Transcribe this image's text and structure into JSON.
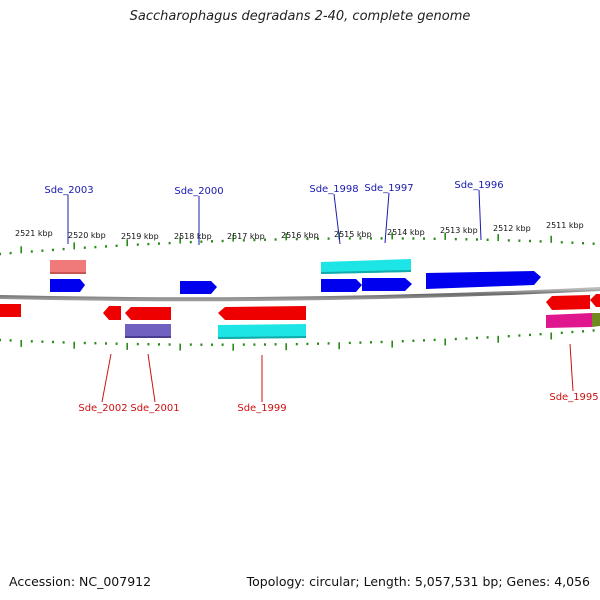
{
  "title": "Saccharophagus degradans 2-40, complete genome",
  "footer": {
    "accession": "Accession: NC_007912",
    "summary": "Topology: circular; Length: 5,057,531 bp; Genes: 4,056"
  },
  "colors": {
    "forward_gene": "#0000ee",
    "reverse_gene": "#ee0000",
    "forward_label": "#1a1ab0",
    "reverse_label": "#cc1111",
    "backbone": "#777777",
    "tick": "#2a8a1a",
    "cyan": "#1ee5e5",
    "salmon": "#f07a7a",
    "slate": "#7060c0",
    "magenta": "#e0168e",
    "olive": "#708a20"
  },
  "scale_labels": [
    "2521 kbp",
    "2520 kbp",
    "2519 kbp",
    "2518 kbp",
    "2517 kbp",
    "2516 kbp",
    "2515 kbp",
    "2514 kbp",
    "2513 kbp",
    "2512 kbp",
    "2511 kbp"
  ],
  "top_labels": [
    "Sde_2003",
    "Sde_2000",
    "Sde_1998",
    "Sde_1997",
    "Sde_1996"
  ],
  "bottom_labels": [
    "Sde_2002",
    "Sde_2001",
    "Sde_1999",
    "Sde_1995"
  ]
}
